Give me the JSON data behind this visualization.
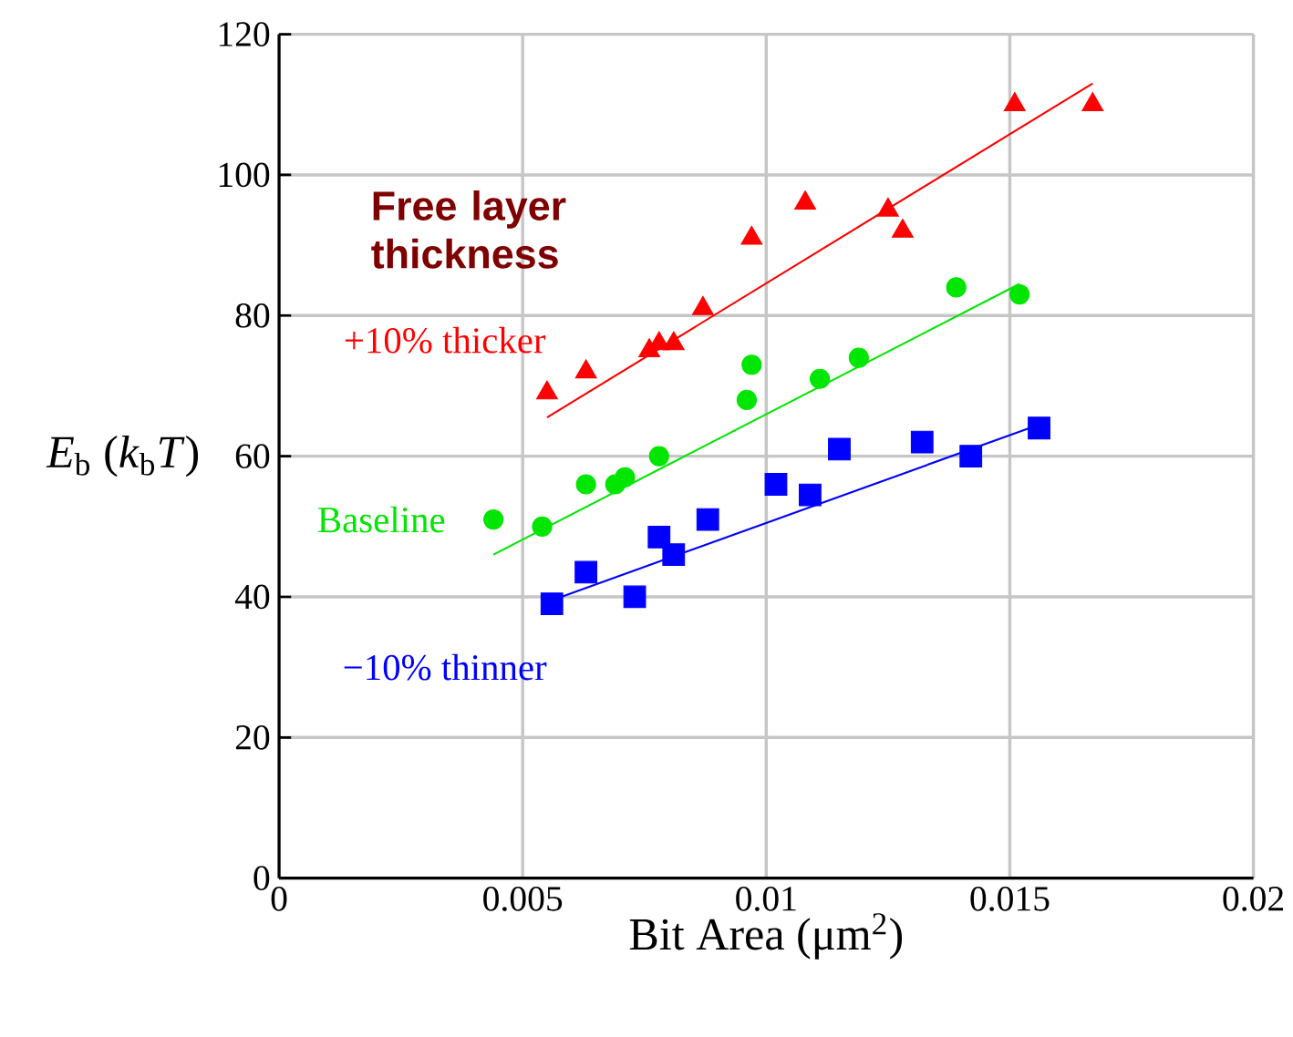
{
  "chart_data": {
    "type": "scatter",
    "xlabel": "Bit Area (μm$^{2}$)",
    "ylabel": "*E*$_{b}$ (*k*$_{b}$*T*)",
    "annotations": [
      "Free layer thickness"
    ],
    "xlim": [
      0,
      0.02
    ],
    "xticks": [
      0,
      0.005,
      0.01,
      0.015,
      0.02
    ],
    "ylim": [
      0,
      120
    ],
    "yticks": [
      0,
      20,
      40,
      60,
      80,
      100,
      120
    ],
    "grid": true,
    "series": [
      {
        "name": "+10% thicker",
        "color": "#ff0000",
        "marker": "triangle",
        "x": [
          0.0055,
          0.0063,
          0.0076,
          0.0078,
          0.0081,
          0.0087,
          0.0097,
          0.0108,
          0.0125,
          0.0128,
          0.0151,
          0.0167
        ],
        "values": [
          69,
          72,
          75,
          76,
          76,
          81,
          91,
          96,
          95,
          92,
          110,
          110
        ]
      },
      {
        "name": "Baseline",
        "color": "#00e600",
        "marker": "circle",
        "x": [
          0.0044,
          0.0054,
          0.0063,
          0.0069,
          0.0071,
          0.0078,
          0.0096,
          0.0097,
          0.0111,
          0.0119,
          0.0139,
          0.0152
        ],
        "values": [
          51,
          50,
          56,
          56,
          57,
          60,
          68,
          73,
          71,
          74,
          84,
          83
        ]
      },
      {
        "name": "−10% thinner",
        "color": "#0000ff",
        "marker": "square",
        "x": [
          0.0056,
          0.0063,
          0.0073,
          0.0078,
          0.0081,
          0.0088,
          0.0102,
          0.0109,
          0.0115,
          0.0132,
          0.0142,
          0.0156
        ],
        "values": [
          39,
          43.5,
          40,
          48.5,
          46,
          51,
          56,
          54.5,
          61,
          62,
          60,
          64
        ]
      },
      {
        "type": "line",
        "color": "#ff0000",
        "marker": "none",
        "line_style": "solid",
        "x": [
          0.0055,
          0.0167
        ],
        "values": [
          65.5,
          113
        ]
      },
      {
        "type": "line",
        "color": "#00e600",
        "marker": "none",
        "line_style": "solid",
        "x": [
          0.0044,
          0.0152
        ],
        "values": [
          46,
          84.5
        ]
      },
      {
        "type": "line",
        "color": "#0000ff",
        "marker": "none",
        "line_style": "solid",
        "x": [
          0.0056,
          0.0156
        ],
        "values": [
          39.5,
          64.5
        ]
      }
    ]
  }
}
